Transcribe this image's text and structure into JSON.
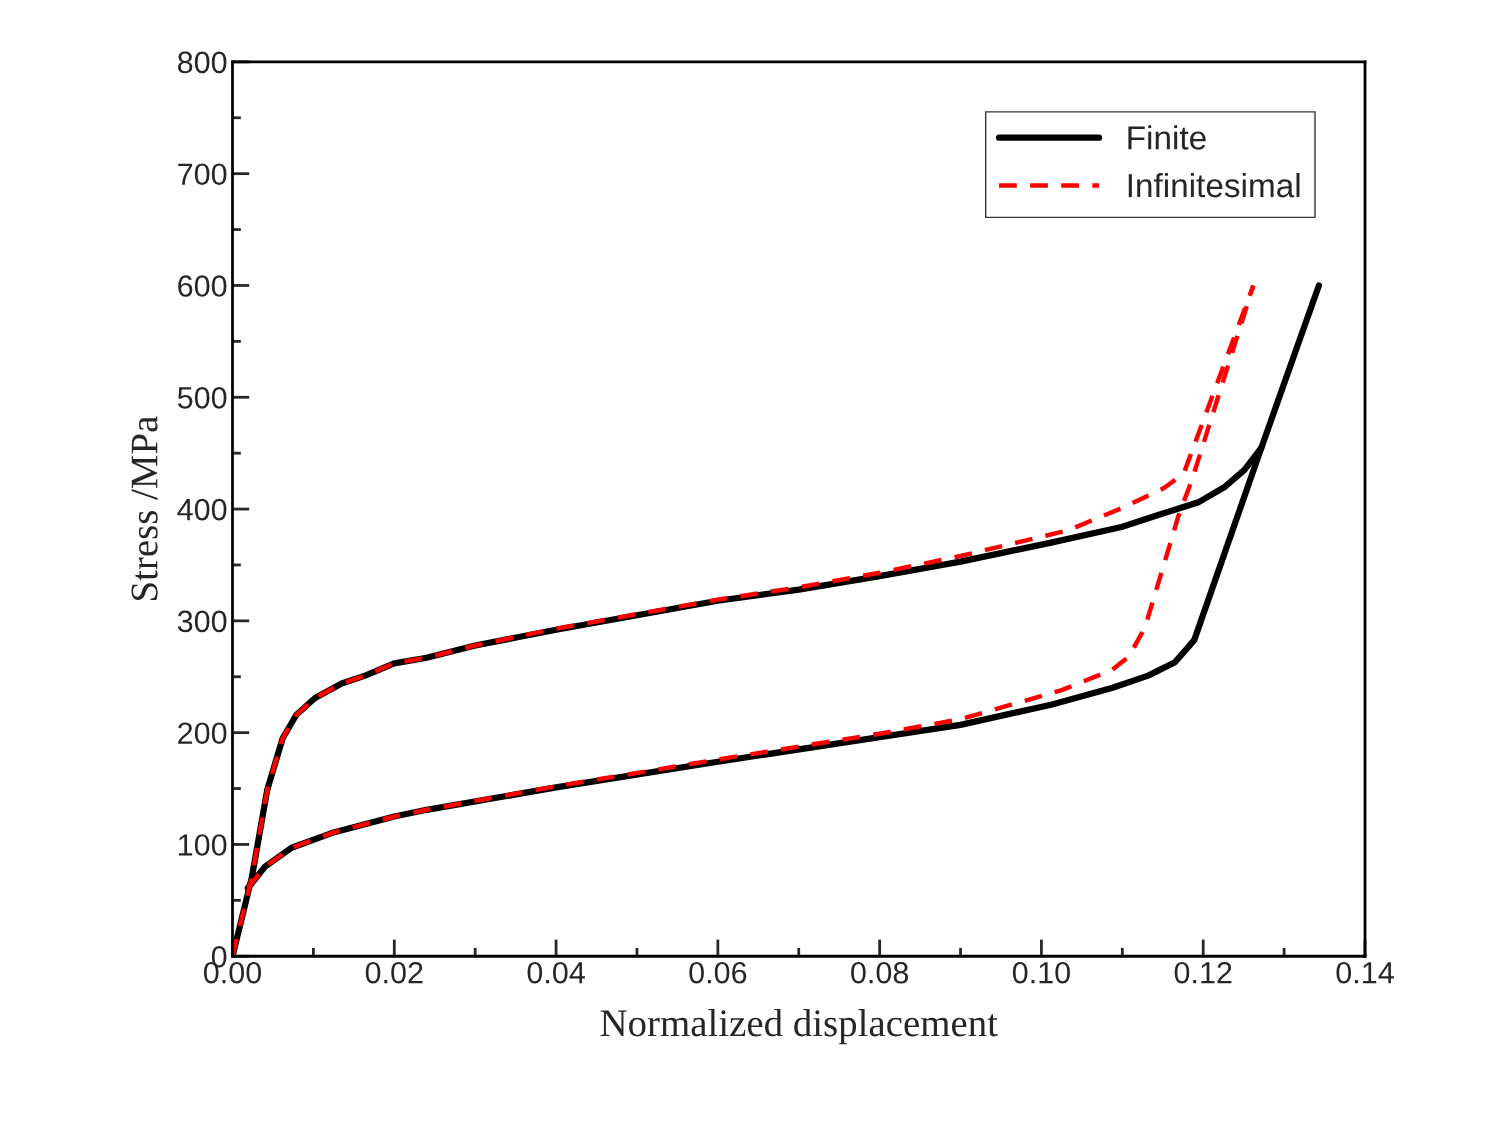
{
  "chart_data": {
    "type": "line",
    "xlabel": "Normalized displacement",
    "ylabel": "Stress /MPa",
    "xlim": [
      0,
      0.14
    ],
    "xticks": [
      {
        "value": 0,
        "label": "0.00"
      },
      {
        "value": 0.02,
        "label": "0.02"
      },
      {
        "value": 0.04,
        "label": "0.04"
      },
      {
        "value": 0.06,
        "label": "0.06"
      },
      {
        "value": 0.08,
        "label": "0.08"
      },
      {
        "value": 0.1,
        "label": "0.10"
      },
      {
        "value": 0.12,
        "label": "0.12"
      },
      {
        "value": 0.14,
        "label": "0.14"
      }
    ],
    "ylim": [
      0,
      800
    ],
    "yticks": [
      0,
      100,
      200,
      300,
      400,
      500,
      600,
      700,
      800
    ],
    "grid": false,
    "legend": "top right",
    "marker": "none",
    "series": [
      {
        "name": "Finite",
        "color": "#000000",
        "line_style": "solid",
        "x": [
          0,
          0.0024,
          0.0043,
          0.0062,
          0.0079,
          0.0102,
          0.0135,
          0.0164,
          0.02,
          0.024,
          0.03,
          0.04,
          0.05,
          0.06,
          0.07,
          0.08,
          0.09,
          0.1012,
          0.1099,
          0.115,
          0.1194,
          0.1227,
          0.1251,
          0.1272,
          0.1343
        ],
        "values": [
          0,
          71,
          149,
          195,
          216,
          231,
          244,
          251,
          262,
          267,
          278,
          292,
          305,
          318,
          328,
          340,
          353,
          370,
          384,
          396,
          406,
          420,
          435,
          455,
          600
        ]
      },
      {
        "color": "#000000",
        "line_style": "solid",
        "x": [
          0.0019,
          0.004,
          0.0073,
          0.0126,
          0.02,
          0.024,
          0.04,
          0.06,
          0.08,
          0.09,
          0.1012,
          0.1087,
          0.1132,
          0.1165,
          0.1182,
          0.1189,
          0.1272
        ],
        "values": [
          61,
          80,
          97,
          111,
          125,
          131,
          151,
          174,
          196,
          207,
          225,
          240,
          251,
          263,
          277,
          283,
          455
        ]
      },
      {
        "name": "Infinitesimal",
        "color": "#ff0000",
        "line_style": "dashed",
        "x": [
          0,
          0.0024,
          0.0043,
          0.0062,
          0.0079,
          0.0102,
          0.0135,
          0.0164,
          0.02,
          0.024,
          0.03,
          0.04,
          0.05,
          0.06,
          0.07,
          0.08,
          0.09,
          0.1033,
          0.1103,
          0.1152,
          0.1176,
          0.1262
        ],
        "values": [
          0,
          71,
          149,
          195,
          216,
          231,
          244,
          251,
          262,
          267,
          278,
          293,
          306,
          319,
          330,
          343,
          358,
          381,
          402,
          419,
          432,
          600
        ]
      },
      {
        "color": "#ff0000",
        "line_style": "dashed",
        "x": [
          0.0019,
          0.004,
          0.0073,
          0.0126,
          0.02,
          0.024,
          0.04,
          0.06,
          0.08,
          0.09,
          0.1025,
          0.1087,
          0.1108,
          0.1128,
          0.1169,
          0.1186,
          0.1262
        ],
        "values": [
          61,
          80,
          97,
          111,
          125,
          131,
          152,
          176,
          199,
          212,
          238,
          256,
          268,
          294,
          393,
          426,
          600
        ]
      }
    ]
  }
}
